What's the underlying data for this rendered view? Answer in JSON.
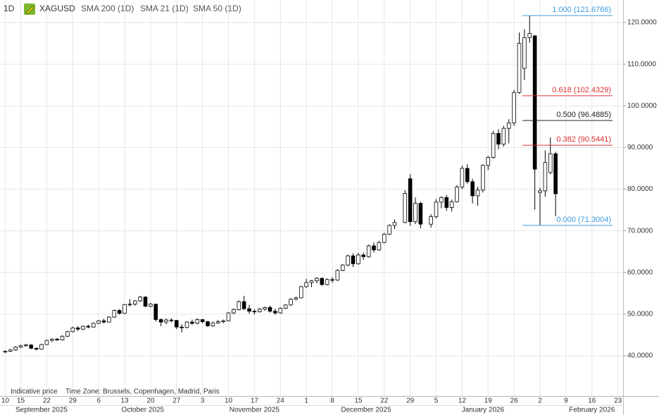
{
  "chart_data": {
    "type": "candlestick",
    "interval": "1D",
    "symbol": "XAGUSD",
    "indicators": [
      "SMA 200 (1D)",
      "SMA 21 (1D)",
      "SMA 50 (1D)"
    ],
    "notes": [
      "Indicative price",
      "Time Zone: Brussels, Copenhagen, Madrid, Paris"
    ],
    "x": [
      "2025-09-10",
      "2025-09-11",
      "2025-09-12",
      "2025-09-15",
      "2025-09-16",
      "2025-09-17",
      "2025-09-18",
      "2025-09-19",
      "2025-09-22",
      "2025-09-23",
      "2025-09-24",
      "2025-09-25",
      "2025-09-26",
      "2025-09-29",
      "2025-09-30",
      "2025-10-01",
      "2025-10-02",
      "2025-10-03",
      "2025-10-06",
      "2025-10-07",
      "2025-10-08",
      "2025-10-09",
      "2025-10-10",
      "2025-10-13",
      "2025-10-14",
      "2025-10-15",
      "2025-10-16",
      "2025-10-17",
      "2025-10-20",
      "2025-10-21",
      "2025-10-22",
      "2025-10-23",
      "2025-10-24",
      "2025-10-27",
      "2025-10-28",
      "2025-10-29",
      "2025-10-30",
      "2025-10-31",
      "2025-11-03",
      "2025-11-04",
      "2025-11-05",
      "2025-11-06",
      "2025-11-07",
      "2025-11-10",
      "2025-11-11",
      "2025-11-12",
      "2025-11-13",
      "2025-11-14",
      "2025-11-17",
      "2025-11-18",
      "2025-11-19",
      "2025-11-20",
      "2025-11-21",
      "2025-11-24",
      "2025-11-25",
      "2025-11-26",
      "2025-11-27",
      "2025-11-28",
      "2025-12-01",
      "2025-12-02",
      "2025-12-03",
      "2025-12-04",
      "2025-12-05",
      "2025-12-08",
      "2025-12-09",
      "2025-12-10",
      "2025-12-11",
      "2025-12-12",
      "2025-12-15",
      "2025-12-16",
      "2025-12-17",
      "2025-12-18",
      "2025-12-19",
      "2025-12-22",
      "2025-12-23",
      "2025-12-24",
      "2025-12-26",
      "2025-12-29",
      "2025-12-30",
      "2025-12-31",
      "2026-01-02",
      "2026-01-05",
      "2026-01-06",
      "2026-01-07",
      "2026-01-08",
      "2026-01-09",
      "2026-01-12",
      "2026-01-13",
      "2026-01-14",
      "2026-01-15",
      "2026-01-16",
      "2026-01-19",
      "2026-01-20",
      "2026-01-21",
      "2026-01-22",
      "2026-01-23",
      "2026-01-26",
      "2026-01-27",
      "2026-01-28",
      "2026-01-29",
      "2026-01-30",
      "2026-02-02",
      "2026-02-03",
      "2026-02-04",
      "2026-02-05"
    ],
    "open": [
      40.9,
      41.1,
      41.4,
      42.1,
      42.4,
      42.6,
      41.8,
      41.6,
      42.7,
      43.7,
      44.0,
      43.8,
      44.7,
      45.8,
      46.7,
      46.4,
      47.1,
      46.9,
      47.8,
      48.4,
      48.1,
      49.3,
      50.9,
      50.2,
      52.3,
      52.4,
      53.2,
      54.1,
      51.9,
      52.4,
      48.7,
      48.1,
      48.6,
      48.5,
      46.9,
      46.8,
      48.1,
      47.8,
      48.7,
      48.2,
      47.2,
      47.9,
      48.2,
      48.4,
      50.3,
      51.1,
      53.0,
      51.3,
      50.7,
      50.6,
      51.2,
      51.6,
      50.7,
      50.3,
      51.4,
      52.2,
      53.6,
      53.9,
      56.6,
      57.6,
      58.0,
      58.6,
      57.1,
      58.3,
      58.2,
      60.5,
      61.8,
      64.0,
      62.1,
      64.2,
      63.8,
      66.4,
      65.4,
      67.2,
      69.2,
      71.3,
      72.0,
      82.5,
      72.2,
      76.6,
      71.6,
      73.4,
      76.9,
      78.0,
      75.6,
      77.0,
      80.5,
      85.0,
      81.8,
      78.4,
      79.8,
      85.7,
      87.6,
      93.4,
      90.8,
      94.6,
      95.9,
      103.2,
      109.0,
      116.4,
      116.8,
      79.2,
      79.6,
      84.0,
      88.5
    ],
    "high": [
      41.3,
      41.6,
      42.3,
      42.6,
      42.9,
      42.8,
      42.0,
      42.9,
      43.9,
      44.2,
      44.3,
      44.9,
      46.0,
      47.0,
      47.1,
      47.3,
      47.5,
      48.0,
      48.6,
      48.9,
      49.5,
      51.1,
      51.2,
      52.5,
      53.6,
      53.4,
      54.4,
      54.3,
      52.7,
      52.5,
      49.0,
      49.0,
      49.0,
      48.6,
      47.6,
      48.3,
      48.7,
      49.0,
      48.8,
      48.4,
      48.2,
      48.6,
      48.7,
      50.5,
      51.4,
      53.3,
      54.4,
      52.2,
      51.2,
      51.5,
      51.8,
      52.0,
      51.3,
      51.6,
      52.4,
      53.8,
      54.2,
      56.8,
      58.5,
      58.2,
      58.9,
      58.8,
      58.6,
      58.9,
      60.8,
      62.0,
      64.3,
      64.6,
      64.7,
      64.8,
      66.7,
      67.2,
      67.6,
      69.5,
      71.6,
      72.7,
      79.8,
      83.6,
      78.0,
      77.0,
      74.0,
      77.6,
      78.3,
      78.6,
      77.5,
      81.0,
      85.6,
      86.0,
      82.5,
      80.6,
      86.0,
      88.0,
      94.0,
      94.4,
      95.2,
      96.8,
      103.8,
      117.6,
      118.4,
      121.6766,
      117.0,
      80.4,
      89.3,
      92.4,
      89.0
    ],
    "low": [
      40.6,
      40.9,
      41.2,
      41.9,
      42.2,
      41.6,
      41.3,
      41.5,
      42.6,
      43.3,
      43.6,
      43.7,
      44.5,
      45.6,
      46.0,
      46.2,
      46.6,
      46.8,
      47.6,
      47.8,
      48.0,
      49.1,
      49.9,
      50.0,
      51.8,
      52.0,
      52.9,
      51.7,
      51.6,
      48.2,
      47.1,
      47.6,
      48.0,
      46.4,
      45.6,
      46.6,
      47.4,
      47.6,
      47.8,
      46.9,
      47.0,
      47.7,
      47.8,
      48.3,
      50.0,
      50.9,
      51.0,
      50.1,
      49.9,
      50.4,
      50.8,
      50.4,
      49.8,
      50.1,
      51.2,
      52.0,
      53.3,
      53.8,
      56.3,
      56.5,
      57.4,
      56.8,
      56.9,
      57.5,
      58.0,
      60.3,
      61.5,
      61.3,
      61.9,
      63.0,
      63.6,
      64.8,
      65.2,
      67.0,
      69.0,
      70.4,
      71.8,
      71.2,
      71.6,
      70.6,
      70.8,
      73.0,
      75.4,
      74.8,
      74.6,
      76.8,
      80.0,
      81.3,
      76.6,
      76.0,
      79.2,
      84.6,
      87.3,
      89.6,
      90.2,
      91.0,
      95.2,
      102.9,
      106.2,
      115.2,
      75.1,
      71.3004,
      78.2,
      83.6,
      73.5
    ],
    "close": [
      41.1,
      41.4,
      42.1,
      42.4,
      42.6,
      41.8,
      41.6,
      42.7,
      43.7,
      44.0,
      43.8,
      44.7,
      45.8,
      46.7,
      46.4,
      47.1,
      46.9,
      47.8,
      48.4,
      48.1,
      49.3,
      50.9,
      50.2,
      52.3,
      52.4,
      53.2,
      54.1,
      51.9,
      52.4,
      48.7,
      48.1,
      48.6,
      48.5,
      46.9,
      46.8,
      48.1,
      47.8,
      48.7,
      48.2,
      47.2,
      47.9,
      48.2,
      48.4,
      50.3,
      51.1,
      53.0,
      51.3,
      50.7,
      50.6,
      51.2,
      51.6,
      50.7,
      50.3,
      51.4,
      52.2,
      53.6,
      53.9,
      56.6,
      57.6,
      58.0,
      58.6,
      57.1,
      58.3,
      58.2,
      60.5,
      61.8,
      64.0,
      62.1,
      64.2,
      63.8,
      66.4,
      65.4,
      67.2,
      69.2,
      71.3,
      72.0,
      79.0,
      72.2,
      76.6,
      71.6,
      73.4,
      76.9,
      78.0,
      75.6,
      77.0,
      80.5,
      85.0,
      81.8,
      78.4,
      79.8,
      85.7,
      87.6,
      93.4,
      90.8,
      94.6,
      95.9,
      103.2,
      115.0,
      116.4,
      117.4,
      84.8,
      79.6,
      86.4,
      88.5,
      78.9
    ],
    "up_color": "#ffffff",
    "down_color": "#000000",
    "fib_levels": [
      {
        "value": 121.6766,
        "label": "1.000 (121.6766)",
        "color": "#3d9be0"
      },
      {
        "value": 102.4329,
        "label": "0.618 (102.4329)",
        "color": "#e03030"
      },
      {
        "value": 96.4885,
        "label": "0.500 (96.4885)",
        "color": "#222222"
      },
      {
        "value": 90.5441,
        "label": "0.382 (90.5441)",
        "color": "#e03030"
      },
      {
        "value": 71.3004,
        "label": "0.000 (71.3004)",
        "color": "#3d9be0"
      }
    ],
    "xlim": [
      "2025-09-09",
      "2026-02-24"
    ],
    "xticks": [
      {
        "value": "2025-09-10",
        "label": "10"
      },
      {
        "value": "2025-09-15",
        "label": "15"
      },
      {
        "value": "2025-09-22",
        "label": "22"
      },
      {
        "value": "2025-09-29",
        "label": "29"
      },
      {
        "value": "2025-10-06",
        "label": "6"
      },
      {
        "value": "2025-10-13",
        "label": "13"
      },
      {
        "value": "2025-10-20",
        "label": "20"
      },
      {
        "value": "2025-10-27",
        "label": "27"
      },
      {
        "value": "2025-11-03",
        "label": "3"
      },
      {
        "value": "2025-11-10",
        "label": "10"
      },
      {
        "value": "2025-11-17",
        "label": "17"
      },
      {
        "value": "2025-11-24",
        "label": "24"
      },
      {
        "value": "2025-12-01",
        "label": "1"
      },
      {
        "value": "2025-12-08",
        "label": "8"
      },
      {
        "value": "2025-12-15",
        "label": "15"
      },
      {
        "value": "2025-12-22",
        "label": "22"
      },
      {
        "value": "2025-12-29",
        "label": "29"
      },
      {
        "value": "2026-01-05",
        "label": "5"
      },
      {
        "value": "2026-01-12",
        "label": "12"
      },
      {
        "value": "2026-01-19",
        "label": "19"
      },
      {
        "value": "2026-01-26",
        "label": "26"
      },
      {
        "value": "2026-02-02",
        "label": "2"
      },
      {
        "value": "2026-02-09",
        "label": "9"
      },
      {
        "value": "2026-02-16",
        "label": "16"
      },
      {
        "value": "2026-02-23",
        "label": "23"
      }
    ],
    "months": [
      {
        "value": "2025-09",
        "label": "September 2025"
      },
      {
        "value": "2025-10",
        "label": "October 2025"
      },
      {
        "value": "2025-11",
        "label": "November 2025"
      },
      {
        "value": "2025-12",
        "label": "December 2025"
      },
      {
        "value": "2026-01",
        "label": "January 2026"
      },
      {
        "value": "2026-02",
        "label": "February 2026"
      }
    ],
    "ylim": [
      30.36,
      125.41
    ],
    "yticks": [
      {
        "value": 40,
        "label": "40.0000"
      },
      {
        "value": 50,
        "label": "50.0000"
      },
      {
        "value": 60,
        "label": "60.0000"
      },
      {
        "value": 70,
        "label": "70.0000"
      },
      {
        "value": 80,
        "label": "80.0000"
      },
      {
        "value": 90,
        "label": "90.0000"
      },
      {
        "value": 100,
        "label": "100.0000"
      },
      {
        "value": 110,
        "label": "110.0000"
      },
      {
        "value": 120,
        "label": "120.0000"
      }
    ],
    "grid": true
  }
}
